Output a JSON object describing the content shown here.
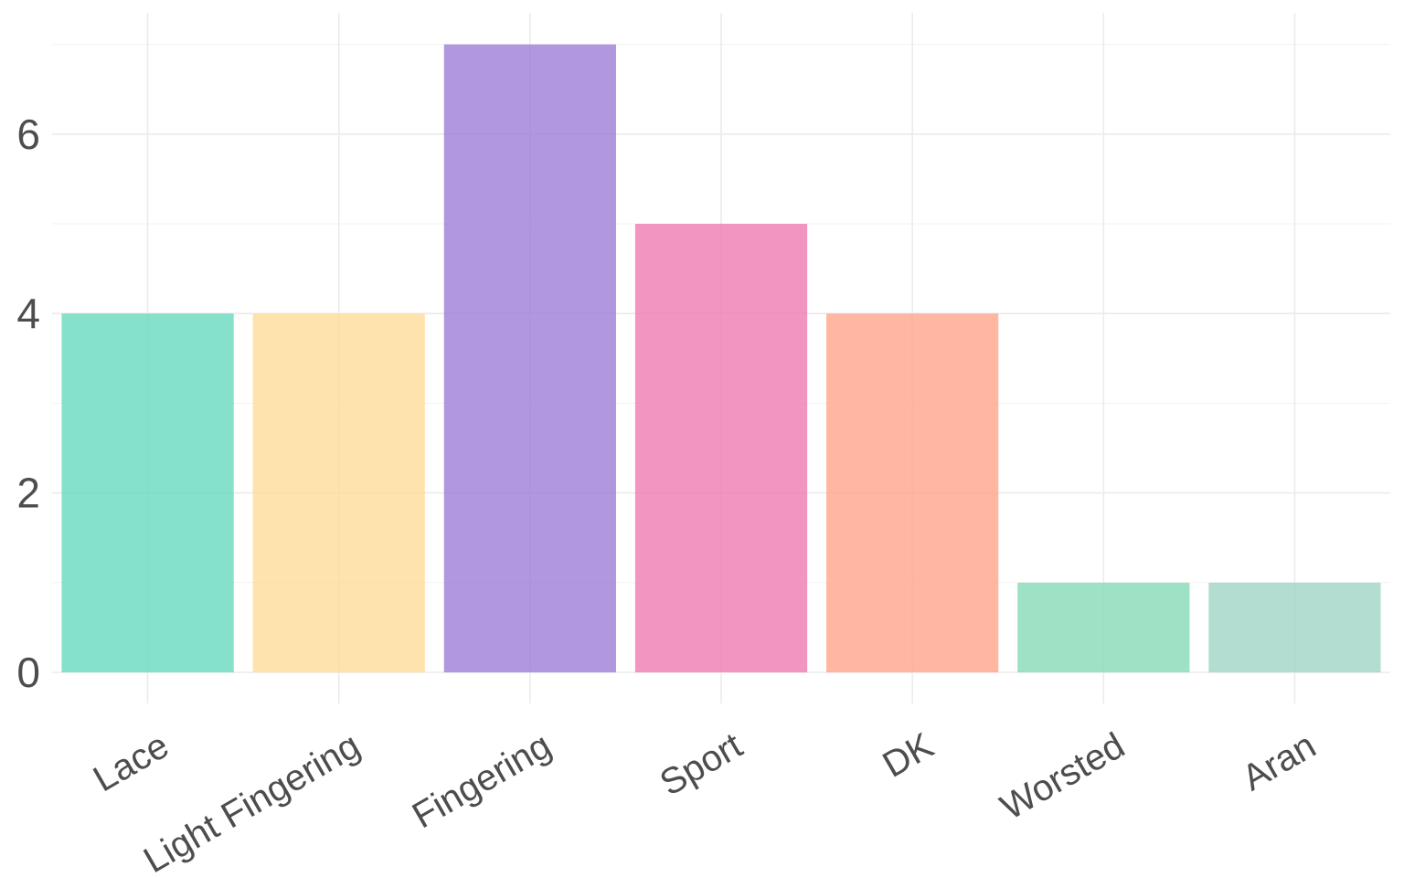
{
  "chart_data": {
    "type": "bar",
    "title": "",
    "xlabel": "",
    "ylabel": "",
    "categories": [
      "Lace",
      "Light Fingering",
      "Fingering",
      "Sport",
      "DK",
      "Worsted",
      "Aran"
    ],
    "values": [
      4,
      4,
      7,
      5,
      4,
      1,
      1
    ],
    "colors": [
      "#66d9bd",
      "#fedc97",
      "#9c7dd6",
      "#ef7bb1",
      "#ffa58b",
      "#86dbb7",
      "#9fd4c4"
    ],
    "bar_opacity": 0.8,
    "ylim": [
      0,
      7.35
    ],
    "yticks": [
      0,
      2,
      4,
      6
    ],
    "y_tick_labels": [
      "0",
      "2",
      "4",
      "6"
    ],
    "grid": true,
    "legend": "none"
  }
}
